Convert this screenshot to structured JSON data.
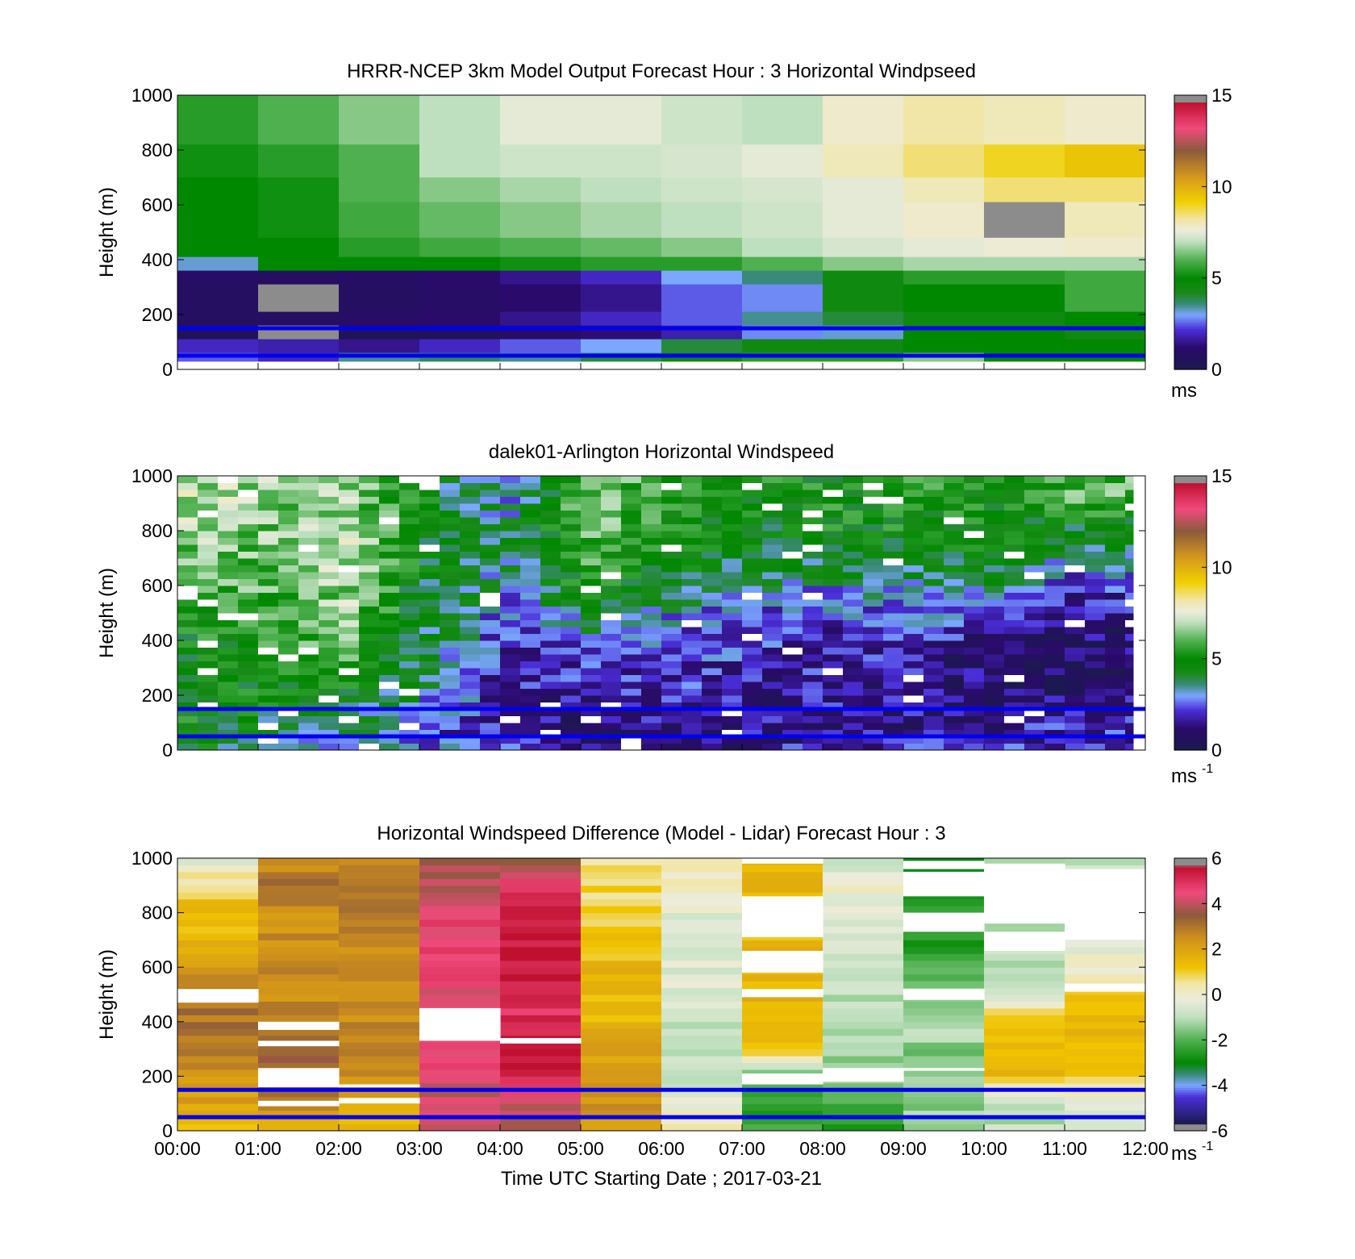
{
  "chart_data": [
    {
      "type": "heatmap",
      "title": "HRRR-NCEP 3km Model Output   Forecast Hour : 3 Horizontal Windpseed",
      "ylabel": "Height (m)",
      "xlabel": "",
      "ylim": [
        0,
        1000
      ],
      "yticks": [
        "0",
        "200",
        "400",
        "600",
        "800",
        "1000"
      ],
      "xticks": [
        "00:00",
        "01:00",
        "02:00",
        "03:00",
        "04:00",
        "05:00",
        "06:00",
        "07:00",
        "08:00",
        "09:00",
        "10:00",
        "11:00",
        "12:00"
      ],
      "show_xtick_labels": false,
      "color_scale": "speed",
      "clim": [
        0,
        15
      ],
      "colorbar_ticks": [
        "0",
        "5",
        "10",
        "15"
      ],
      "colorbar_unit": "ms",
      "colorbar_unit_sup": "",
      "reference_lines_m": [
        150,
        50
      ],
      "reference_line_color": "#0000ee",
      "x_hours": [
        0,
        1,
        2,
        3,
        4,
        5,
        6,
        7,
        8,
        9,
        10,
        11
      ],
      "z_columns": [
        [
          5.5,
          6.0,
          6.5,
          7.0,
          7.5,
          7.5,
          7.2,
          7.0,
          7.8,
          8.2,
          8.0,
          7.8,
          7.8
        ],
        [
          5.2,
          5.5,
          6.0,
          7.0,
          7.2,
          7.2,
          7.3,
          7.5,
          8.0,
          8.5,
          9.0,
          9.5,
          8.5
        ],
        [
          5.0,
          5.2,
          6.0,
          6.5,
          6.8,
          7.0,
          7.2,
          7.3,
          7.5,
          8.0,
          8.5,
          8.5,
          8.3
        ],
        [
          5.0,
          5.2,
          5.8,
          6.2,
          6.5,
          6.8,
          7.0,
          7.2,
          7.5,
          7.8,
          0.0,
          8.0,
          7.2
        ],
        [
          5.0,
          5.0,
          5.5,
          5.8,
          6.0,
          6.2,
          6.5,
          7.0,
          7.3,
          7.5,
          7.7,
          7.8,
          7.0
        ],
        [
          3.2,
          5.0,
          5.0,
          5.0,
          5.2,
          5.5,
          5.5,
          6.0,
          6.5,
          6.8,
          6.8,
          6.8,
          6.5
        ],
        [
          1.0,
          0.8,
          1.0,
          1.2,
          1.5,
          2.0,
          3.0,
          3.6,
          4.5,
          5.5,
          5.5,
          5.8,
          6.0
        ],
        [
          0.8,
          0.0,
          0.8,
          1.0,
          1.2,
          1.5,
          2.5,
          2.8,
          4.5,
          5.0,
          5.0,
          5.8,
          6.0
        ],
        [
          0.8,
          0.9,
          1.0,
          1.2,
          1.5,
          2.0,
          2.5,
          3.5,
          4.0,
          4.5,
          4.5,
          5.0,
          5.5
        ],
        [
          0.6,
          0.0,
          0.5,
          0.6,
          1.0,
          1.3,
          1.8,
          2.8,
          3.2,
          5.0,
          5.0,
          4.5,
          4.5
        ],
        [
          2.0,
          1.8,
          1.5,
          2.0,
          2.5,
          3.0,
          4.0,
          4.5,
          4.5,
          5.0,
          5.0,
          5.0,
          5.0
        ],
        [
          2.5,
          2.0,
          3.5,
          3.8,
          3.5,
          4.0,
          4.5,
          5.5,
          5.5,
          6.5,
          5.0,
          5.0,
          5.2
        ]
      ]
    },
    {
      "type": "heatmap",
      "title": "dalek01-Arlington  Horizontal Windspeed",
      "ylabel": "Height (m)",
      "xlabel": "",
      "ylim": [
        0,
        1000
      ],
      "yticks": [
        "0",
        "200",
        "400",
        "600",
        "800",
        "1000"
      ],
      "xticks": [
        "00:00",
        "01:00",
        "02:00",
        "03:00",
        "04:00",
        "05:00",
        "06:00",
        "07:00",
        "08:00",
        "09:00",
        "10:00",
        "11:00",
        "12:00"
      ],
      "show_xtick_labels": false,
      "color_scale": "speed",
      "clim": [
        0,
        15
      ],
      "colorbar_ticks": [
        "0",
        "5",
        "10",
        "15"
      ],
      "colorbar_unit": "ms",
      "colorbar_unit_sup": "-1",
      "reference_lines_m": [
        150,
        50
      ],
      "reference_line_color": "#0000ee",
      "data_end_hour": 11.85,
      "columns_per_hour": 4,
      "gate_height_m": 25,
      "x_hours": [
        0,
        1,
        2,
        3,
        4,
        5,
        6,
        7,
        8,
        9,
        10,
        11
      ],
      "profiles": [
        [
          4.8,
          4.8,
          5.0,
          4.5,
          4.5,
          4.8,
          5.0,
          5.5,
          6.0,
          6.5,
          6.8,
          7.0,
          7.0
        ],
        [
          3.5,
          4.0,
          4.8,
          5.0,
          5.2,
          5.5,
          5.8,
          6.0,
          6.0,
          6.2,
          6.5,
          6.5,
          6.5
        ],
        [
          3.0,
          3.5,
          4.5,
          5.0,
          5.5,
          6.0,
          6.5,
          6.5,
          6.8,
          6.8,
          6.8,
          6.5,
          6.5
        ],
        [
          2.5,
          2.5,
          3.0,
          3.5,
          4.0,
          4.0,
          4.0,
          4.2,
          4.5,
          4.5,
          4.5,
          4.5,
          4.5
        ],
        [
          2.0,
          1.8,
          1.5,
          1.5,
          1.8,
          2.0,
          2.5,
          3.0,
          3.5,
          4.0,
          3.5,
          3.0,
          3.0
        ],
        [
          1.5,
          1.2,
          1.5,
          2.0,
          2.5,
          3.0,
          4.0,
          5.0,
          5.5,
          6.0,
          6.2,
          6.5,
          6.5
        ],
        [
          1.5,
          1.5,
          1.8,
          2.0,
          2.2,
          2.5,
          3.0,
          4.0,
          4.5,
          5.0,
          5.0,
          5.0,
          5.2
        ],
        [
          1.5,
          1.5,
          1.5,
          1.8,
          2.0,
          2.2,
          2.5,
          3.0,
          4.0,
          4.5,
          4.5,
          4.8,
          5.0
        ],
        [
          1.8,
          1.5,
          1.5,
          1.5,
          1.8,
          2.0,
          2.5,
          3.0,
          4.0,
          4.5,
          5.0,
          5.0,
          5.0
        ],
        [
          1.8,
          1.5,
          1.5,
          1.5,
          1.5,
          2.0,
          2.5,
          3.5,
          4.0,
          4.5,
          5.0,
          5.2,
          5.5
        ],
        [
          2.0,
          1.5,
          1.2,
          1.0,
          1.0,
          1.5,
          2.5,
          3.5,
          4.5,
          5.0,
          5.0,
          5.0,
          5.0
        ],
        [
          2.0,
          1.8,
          1.5,
          1.0,
          1.0,
          1.2,
          1.5,
          2.0,
          3.0,
          4.0,
          4.5,
          6.0,
          6.0
        ]
      ]
    },
    {
      "type": "heatmap",
      "title": "Horizontal Windspeed Difference (Model - Lidar) Forecast Hour : 3",
      "ylabel": "Height (m)",
      "xlabel": "Time UTC  Starting Date ; 2017-03-21",
      "ylim": [
        0,
        1000
      ],
      "yticks": [
        "0",
        "200",
        "400",
        "600",
        "800",
        "1000"
      ],
      "xticks": [
        "00:00",
        "01:00",
        "02:00",
        "03:00",
        "04:00",
        "05:00",
        "06:00",
        "07:00",
        "08:00",
        "09:00",
        "10:00",
        "11:00",
        "12:00"
      ],
      "show_xtick_labels": true,
      "color_scale": "diff",
      "clim": [
        -6,
        6
      ],
      "colorbar_ticks": [
        "-6",
        "-4",
        "-2",
        "0",
        "2",
        "4",
        "6"
      ],
      "colorbar_unit": "ms",
      "colorbar_unit_sup": "-1",
      "reference_lines_m": [
        150,
        50
      ],
      "reference_line_color": "#0000ee",
      "gate_height_m": 25,
      "x_hours": [
        0,
        1,
        2,
        3,
        4,
        5,
        6,
        7,
        8,
        9,
        10,
        11
      ],
      "profiles": [
        [
          1.5,
          2.0,
          2.5,
          3.0,
          3.0,
          3.0,
          2.0,
          1.5,
          1.5,
          0.8,
          -0.5
        ],
        [
          1.5,
          2.5,
          3.5,
          3.5,
          3.0,
          2.5,
          2.5,
          2.5,
          2.5,
          3.0,
          2.5
        ],
        [
          1.5,
          2.0,
          2.5,
          2.8,
          2.5,
          2.5,
          2.5,
          2.5,
          2.8,
          3.0,
          2.5
        ],
        [
          4.0,
          4.0,
          4.5,
          4.5,
          4.5,
          4.5,
          4.5,
          4.5,
          4.5,
          4.0,
          3.5
        ],
        [
          4.0,
          4.0,
          5.5,
          5.5,
          5.0,
          5.0,
          5.5,
          5.5,
          5.5,
          4.5,
          3.5
        ],
        [
          2.0,
          2.5,
          2.5,
          2.0,
          1.5,
          1.5,
          1.5,
          1.2,
          1.0,
          0.8,
          0.5
        ],
        [
          0.5,
          -0.3,
          -0.8,
          -1.0,
          -0.8,
          -0.5,
          -0.5,
          -0.5,
          -0.3,
          0.3,
          0.3
        ],
        [
          -2.0,
          -2.5,
          -2.0,
          1.5,
          1.5,
          1.5,
          1.5,
          1.5,
          1.0,
          1.5,
          1.5
        ],
        [
          -2.5,
          -2.0,
          -1.5,
          -1.2,
          -1.0,
          -1.0,
          -0.8,
          -0.5,
          -0.5,
          0.0,
          -1.0
        ],
        [
          -1.0,
          -1.5,
          -1.5,
          -1.5,
          -1.0,
          -1.5,
          -2.0,
          -2.5,
          -2.5,
          -3.0,
          -3.0
        ],
        [
          -1.0,
          -1.0,
          1.5,
          1.5,
          1.5,
          -1.0,
          -1.0,
          -1.0,
          -1.0,
          -1.5,
          -1.5
        ],
        [
          -0.5,
          -0.5,
          1.0,
          1.5,
          1.5,
          1.0,
          0.0,
          -0.5,
          -0.5,
          -0.5,
          -1.0
        ]
      ],
      "gaps_m": [
        [
          0,
          470,
          520
        ],
        [
          1,
          370,
          400
        ],
        [
          1,
          310,
          330
        ],
        [
          1,
          160,
          230
        ],
        [
          1,
          90,
          110
        ],
        [
          2,
          160,
          170
        ],
        [
          2,
          100,
          120
        ],
        [
          3,
          330,
          450
        ],
        [
          4,
          320,
          340
        ],
        [
          7,
          980,
          1000
        ],
        [
          7,
          780,
          860
        ],
        [
          7,
          710,
          790
        ],
        [
          7,
          580,
          660
        ],
        [
          7,
          490,
          520
        ],
        [
          7,
          170,
          210
        ],
        [
          8,
          180,
          230
        ],
        [
          9,
          960,
          990
        ],
        [
          9,
          860,
          950
        ],
        [
          9,
          730,
          800
        ],
        [
          9,
          480,
          520
        ],
        [
          9,
          220,
          230
        ],
        [
          10,
          760,
          980
        ],
        [
          10,
          660,
          730
        ],
        [
          11,
          700,
          960
        ],
        [
          11,
          510,
          540
        ]
      ]
    }
  ],
  "colormaps": {
    "speed": [
      [
        0.0,
        "#8c8c8c"
      ],
      [
        0.03,
        "#1a1a4d"
      ],
      [
        1.2,
        "#2a0a6a"
      ],
      [
        2.2,
        "#4a2ed8"
      ],
      [
        3.0,
        "#7ba7ff"
      ],
      [
        3.6,
        "#3a8a7a"
      ],
      [
        4.2,
        "#1a8a1a"
      ],
      [
        5.0,
        "#008800"
      ],
      [
        6.0,
        "#4fb04f"
      ],
      [
        7.0,
        "#bfe0bf"
      ],
      [
        7.6,
        "#ececdc"
      ],
      [
        8.2,
        "#f1e6a8"
      ],
      [
        9.2,
        "#f0d000"
      ],
      [
        10.5,
        "#d89a1c"
      ],
      [
        12.0,
        "#8b5a3c"
      ],
      [
        13.2,
        "#f04a7c"
      ],
      [
        14.6,
        "#c01030"
      ],
      [
        14.62,
        "#8c8c8c"
      ],
      [
        15.0,
        "#8c8c8c"
      ]
    ],
    "diff": [
      [
        -6.0,
        "#8c8c8c"
      ],
      [
        -5.75,
        "#8c8c8c"
      ],
      [
        -5.7,
        "#1a1a4d"
      ],
      [
        -4.5,
        "#4a2ed8"
      ],
      [
        -4.0,
        "#7ba7ff"
      ],
      [
        -3.5,
        "#3a8a7a"
      ],
      [
        -3.0,
        "#008800"
      ],
      [
        -2.0,
        "#4fb04f"
      ],
      [
        -1.0,
        "#bfe0bf"
      ],
      [
        -0.2,
        "#ececdc"
      ],
      [
        0.5,
        "#f1e6a8"
      ],
      [
        1.2,
        "#f0c400"
      ],
      [
        2.5,
        "#d0901c"
      ],
      [
        3.5,
        "#8b5a3c"
      ],
      [
        4.5,
        "#f04a7c"
      ],
      [
        5.6,
        "#c01030"
      ],
      [
        5.75,
        "#8c8c8c"
      ],
      [
        6.0,
        "#8c8c8c"
      ]
    ]
  }
}
